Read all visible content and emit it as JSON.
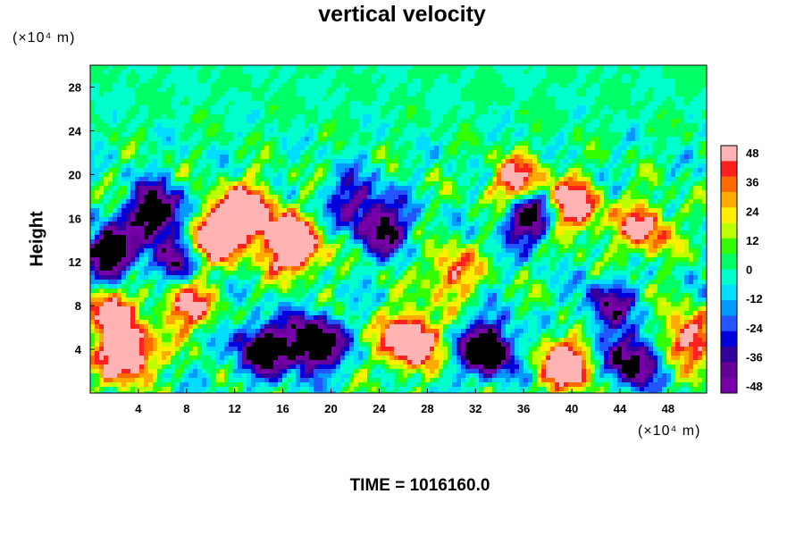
{
  "chart_data": {
    "type": "heatmap",
    "title": "vertical velocity",
    "ylabel": "Height",
    "x_unit": "(×10⁴ m)",
    "y_unit": "(×10⁴ m)",
    "xlim": [
      0,
      51.2
    ],
    "ylim": [
      0,
      30
    ],
    "x_ticks": [
      4,
      8,
      12,
      16,
      20,
      24,
      28,
      32,
      36,
      40,
      44,
      48
    ],
    "y_ticks": [
      4,
      8,
      12,
      16,
      20,
      24,
      28
    ],
    "colorbar": {
      "min": -48,
      "max": 48,
      "ticks": [
        48,
        36,
        24,
        12,
        0,
        -12,
        -24,
        -36,
        -48
      ],
      "colors": [
        "#ffb3b3",
        "#ff2020",
        "#ff6a00",
        "#ffaa00",
        "#ffee00",
        "#bbff00",
        "#33ff00",
        "#00ff66",
        "#00ffcc",
        "#00ddff",
        "#0099ff",
        "#2255ff",
        "#0000dd",
        "#330099",
        "#660099",
        "#7700aa"
      ]
    },
    "features": [
      {
        "x": 3,
        "y": 3.5,
        "w": 1.6
      },
      {
        "x": 1.5,
        "y": 12.8,
        "w": -1.4
      },
      {
        "x": 5.5,
        "y": 16.5,
        "w": -1.5
      },
      {
        "x": 10.5,
        "y": 14.5,
        "w": 1.6
      },
      {
        "x": 13,
        "y": 16.5,
        "w": 1.5
      },
      {
        "x": 16.8,
        "y": 13.5,
        "w": 1.7
      },
      {
        "x": 18.5,
        "y": 4.5,
        "w": -1.7
      },
      {
        "x": 14.2,
        "y": 4,
        "w": -1.3
      },
      {
        "x": 26.5,
        "y": 4.8,
        "w": 1.7
      },
      {
        "x": 33,
        "y": 4,
        "w": -1.6
      },
      {
        "x": 36.5,
        "y": 16.3,
        "w": -1.5
      },
      {
        "x": 40,
        "y": 17,
        "w": 1.3
      },
      {
        "x": 39.5,
        "y": 2.5,
        "w": 1.4
      },
      {
        "x": 45,
        "y": 3,
        "w": -1.3
      },
      {
        "x": 49.5,
        "y": 5,
        "w": 1.1
      },
      {
        "x": 24.5,
        "y": 15,
        "w": -1.0
      },
      {
        "x": 8,
        "y": 8,
        "w": 1.0
      },
      {
        "x": 1.5,
        "y": 7.5,
        "w": 1.0
      },
      {
        "x": 46,
        "y": 15,
        "w": 1.0
      },
      {
        "x": 35.5,
        "y": 19,
        "w": 1.2
      },
      {
        "x": 22,
        "y": 17.5,
        "w": -0.8
      },
      {
        "x": 30,
        "y": 11,
        "w": 0.8
      },
      {
        "x": 7,
        "y": 12,
        "w": -0.8
      },
      {
        "x": 43,
        "y": 8,
        "w": -0.8
      }
    ]
  },
  "time_label": "TIME = 1016160.0"
}
